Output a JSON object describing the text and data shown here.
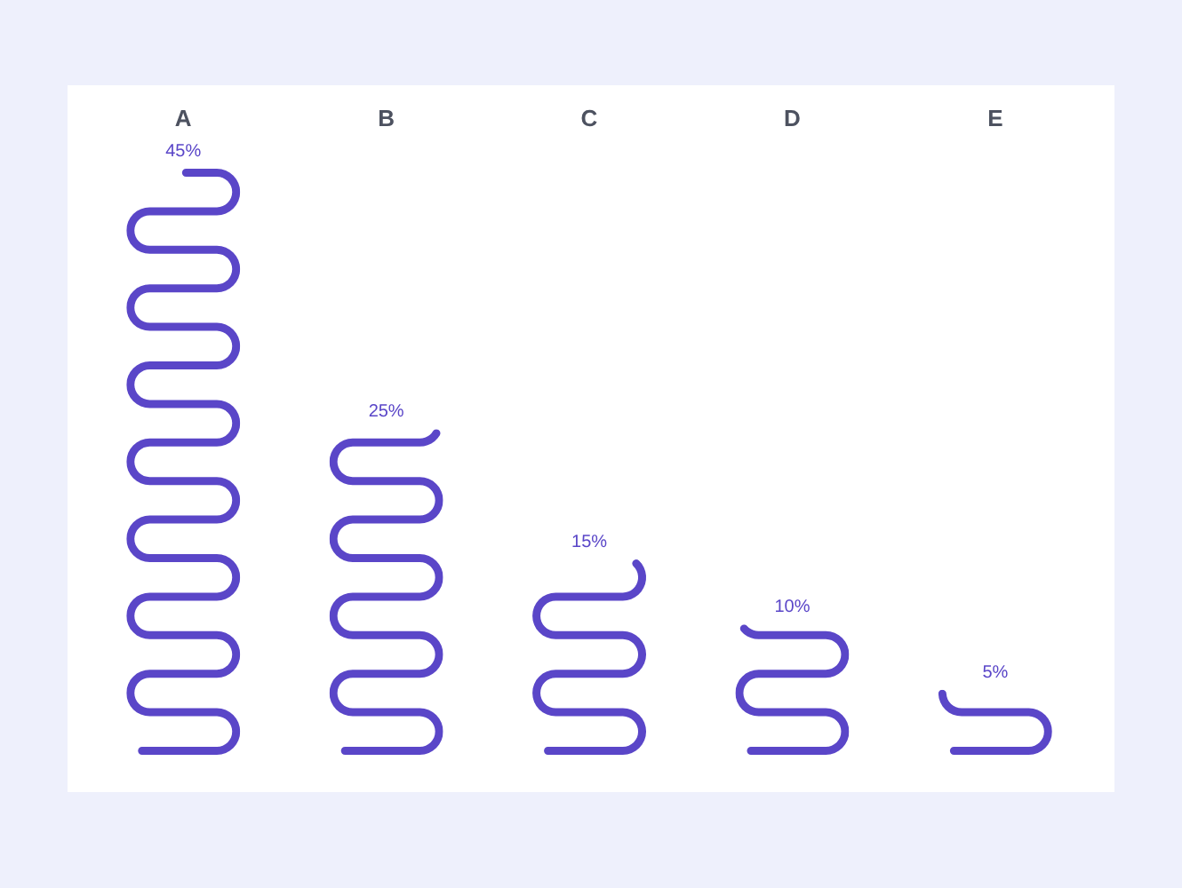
{
  "chart_data": {
    "type": "bar",
    "categories": [
      "A",
      "B",
      "C",
      "D",
      "E"
    ],
    "values": [
      45,
      25,
      15,
      10,
      5
    ],
    "value_labels": [
      "45%",
      "25%",
      "15%",
      "10%",
      "5%"
    ],
    "color": "#5a46c8",
    "tick_labels": "x"
  }
}
